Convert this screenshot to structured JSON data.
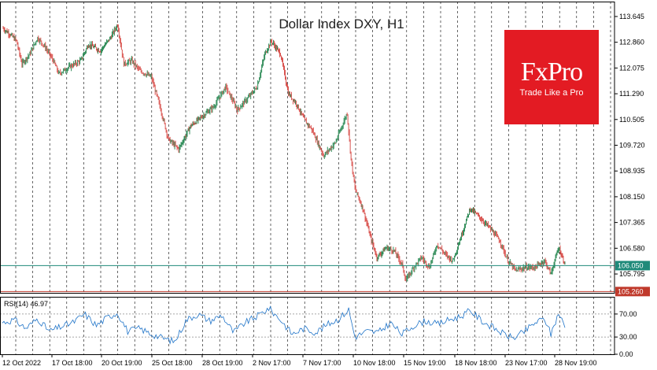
{
  "chart_data": {
    "type": "candlestick",
    "title": "Dollar Index DXY, H1",
    "y_ticks": [
      "113.645",
      "112.860",
      "112.075",
      "111.290",
      "110.505",
      "109.720",
      "108.935",
      "108.150",
      "107.365",
      "106.580",
      "105.795"
    ],
    "ylim": [
      105.22,
      114.1
    ],
    "x_ticks": [
      "12 Oct 2022",
      "17 Oct 18:00",
      "20 Oct 19:00",
      "25 Oct 18:00",
      "28 Oct 19:00",
      "2 Nov 17:00",
      "7 Nov 17:00",
      "10 Nov 18:00",
      "15 Nov 19:00",
      "18 Nov 18:00",
      "23 Nov 17:00",
      "28 Nov 19:00"
    ],
    "price_path": [
      {
        "t": 0,
        "v": 113.3
      },
      {
        "t": 10,
        "v": 113.1
      },
      {
        "t": 18,
        "v": 112.9
      },
      {
        "t": 25,
        "v": 112.2
      },
      {
        "t": 35,
        "v": 112.5
      },
      {
        "t": 45,
        "v": 113.0
      },
      {
        "t": 55,
        "v": 112.7
      },
      {
        "t": 65,
        "v": 112.3
      },
      {
        "t": 72,
        "v": 111.9
      },
      {
        "t": 85,
        "v": 112.1
      },
      {
        "t": 100,
        "v": 112.3
      },
      {
        "t": 110,
        "v": 112.8
      },
      {
        "t": 125,
        "v": 112.6
      },
      {
        "t": 138,
        "v": 113.0
      },
      {
        "t": 147,
        "v": 113.4
      },
      {
        "t": 155,
        "v": 112.2
      },
      {
        "t": 165,
        "v": 112.3
      },
      {
        "t": 175,
        "v": 112.0
      },
      {
        "t": 190,
        "v": 111.8
      },
      {
        "t": 200,
        "v": 111.0
      },
      {
        "t": 212,
        "v": 109.9
      },
      {
        "t": 225,
        "v": 109.6
      },
      {
        "t": 240,
        "v": 110.3
      },
      {
        "t": 255,
        "v": 110.6
      },
      {
        "t": 270,
        "v": 110.9
      },
      {
        "t": 285,
        "v": 111.5
      },
      {
        "t": 300,
        "v": 110.8
      },
      {
        "t": 315,
        "v": 111.2
      },
      {
        "t": 325,
        "v": 111.5
      },
      {
        "t": 335,
        "v": 112.5
      },
      {
        "t": 343,
        "v": 112.9
      },
      {
        "t": 355,
        "v": 112.5
      },
      {
        "t": 365,
        "v": 111.3
      },
      {
        "t": 375,
        "v": 111.0
      },
      {
        "t": 385,
        "v": 110.5
      },
      {
        "t": 395,
        "v": 110.2
      },
      {
        "t": 410,
        "v": 109.4
      },
      {
        "t": 425,
        "v": 109.8
      },
      {
        "t": 440,
        "v": 110.7
      },
      {
        "t": 445,
        "v": 109.3
      },
      {
        "t": 450,
        "v": 108.4
      },
      {
        "t": 460,
        "v": 107.8
      },
      {
        "t": 470,
        "v": 106.9
      },
      {
        "t": 478,
        "v": 106.3
      },
      {
        "t": 490,
        "v": 106.6
      },
      {
        "t": 500,
        "v": 106.5
      },
      {
        "t": 510,
        "v": 106.1
      },
      {
        "t": 515,
        "v": 105.6
      },
      {
        "t": 525,
        "v": 106.0
      },
      {
        "t": 535,
        "v": 106.3
      },
      {
        "t": 545,
        "v": 106.0
      },
      {
        "t": 555,
        "v": 106.7
      },
      {
        "t": 565,
        "v": 106.4
      },
      {
        "t": 575,
        "v": 106.2
      },
      {
        "t": 585,
        "v": 106.9
      },
      {
        "t": 597,
        "v": 107.8
      },
      {
        "t": 610,
        "v": 107.5
      },
      {
        "t": 622,
        "v": 107.2
      },
      {
        "t": 635,
        "v": 106.8
      },
      {
        "t": 645,
        "v": 106.2
      },
      {
        "t": 655,
        "v": 105.9
      },
      {
        "t": 668,
        "v": 106.0
      },
      {
        "t": 680,
        "v": 106.0
      },
      {
        "t": 692,
        "v": 106.2
      },
      {
        "t": 700,
        "v": 105.8
      },
      {
        "t": 710,
        "v": 106.6
      },
      {
        "t": 718,
        "v": 106.1
      }
    ],
    "hlines": [
      {
        "value": 106.05,
        "label": "106.050",
        "color": "#1f8a7a"
      },
      {
        "value": 105.26,
        "label": "105.260",
        "color": "#c0392b"
      }
    ],
    "rsi": {
      "label": "RSI(14) 46.97",
      "levels": [
        "70.00",
        "30.00",
        "0.00"
      ],
      "ylim": [
        0,
        100
      ],
      "path": [
        {
          "t": 0,
          "v": 55
        },
        {
          "t": 15,
          "v": 60
        },
        {
          "t": 30,
          "v": 45
        },
        {
          "t": 45,
          "v": 62
        },
        {
          "t": 60,
          "v": 40
        },
        {
          "t": 75,
          "v": 48
        },
        {
          "t": 90,
          "v": 55
        },
        {
          "t": 105,
          "v": 70
        },
        {
          "t": 120,
          "v": 50
        },
        {
          "t": 135,
          "v": 65
        },
        {
          "t": 147,
          "v": 72
        },
        {
          "t": 160,
          "v": 40
        },
        {
          "t": 175,
          "v": 45
        },
        {
          "t": 190,
          "v": 35
        },
        {
          "t": 205,
          "v": 28
        },
        {
          "t": 220,
          "v": 22
        },
        {
          "t": 235,
          "v": 60
        },
        {
          "t": 250,
          "v": 70
        },
        {
          "t": 265,
          "v": 58
        },
        {
          "t": 280,
          "v": 68
        },
        {
          "t": 295,
          "v": 38
        },
        {
          "t": 310,
          "v": 55
        },
        {
          "t": 325,
          "v": 66
        },
        {
          "t": 340,
          "v": 80
        },
        {
          "t": 355,
          "v": 60
        },
        {
          "t": 370,
          "v": 35
        },
        {
          "t": 385,
          "v": 45
        },
        {
          "t": 400,
          "v": 38
        },
        {
          "t": 415,
          "v": 52
        },
        {
          "t": 430,
          "v": 62
        },
        {
          "t": 442,
          "v": 78
        },
        {
          "t": 450,
          "v": 30
        },
        {
          "t": 465,
          "v": 40
        },
        {
          "t": 480,
          "v": 38
        },
        {
          "t": 495,
          "v": 55
        },
        {
          "t": 510,
          "v": 35
        },
        {
          "t": 525,
          "v": 50
        },
        {
          "t": 540,
          "v": 58
        },
        {
          "t": 555,
          "v": 52
        },
        {
          "t": 570,
          "v": 60
        },
        {
          "t": 585,
          "v": 66
        },
        {
          "t": 597,
          "v": 76
        },
        {
          "t": 612,
          "v": 58
        },
        {
          "t": 628,
          "v": 45
        },
        {
          "t": 640,
          "v": 35
        },
        {
          "t": 652,
          "v": 28
        },
        {
          "t": 665,
          "v": 38
        },
        {
          "t": 680,
          "v": 55
        },
        {
          "t": 692,
          "v": 62
        },
        {
          "t": 700,
          "v": 35
        },
        {
          "t": 710,
          "v": 72
        },
        {
          "t": 718,
          "v": 47
        }
      ]
    }
  },
  "logo": {
    "brand": "FxPro",
    "slogan": "Trade Like a Pro"
  },
  "colors": {
    "bull": "#2e8b57",
    "bear": "#d9534f",
    "rsi": "#1e73c8"
  }
}
